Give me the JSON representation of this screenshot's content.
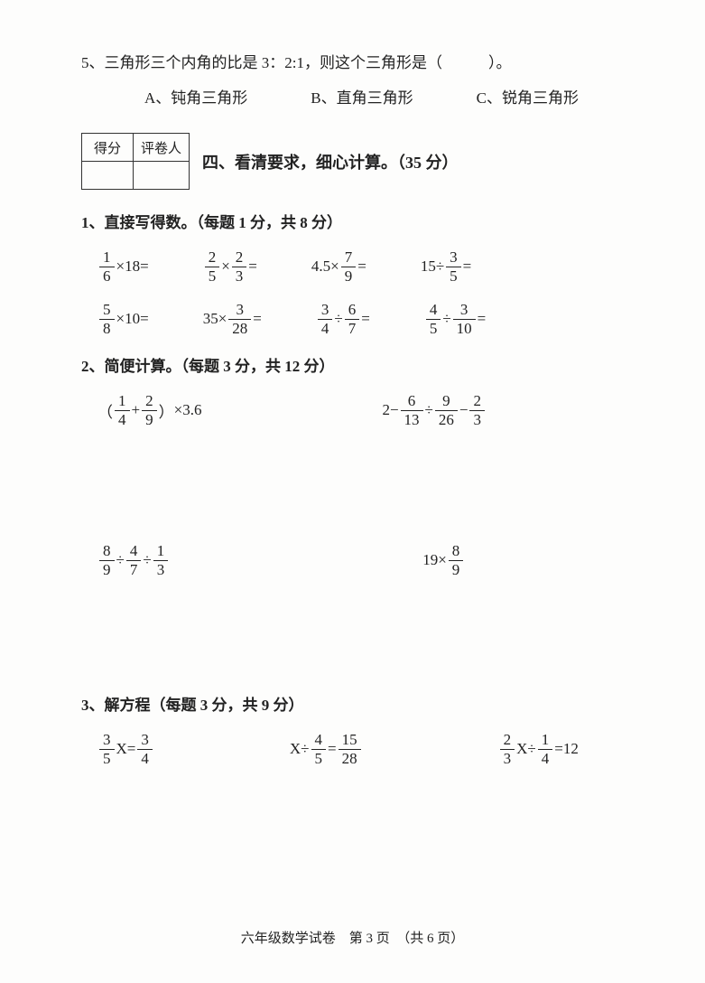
{
  "q5": {
    "stem": "5、三角形三个内角的比是 3：2:1，则这个三角形是（　　　）。",
    "optA": "A、钝角三角形",
    "optB": "B、直角三角形",
    "optC": "C、锐角三角形"
  },
  "scoreTable": {
    "c1": "得分",
    "c2": "评卷人"
  },
  "section4": "四、看清要求，细心计算。（35 分）",
  "sub1": {
    "title": "1、直接写得数。（每题 1 分，共 8 分）"
  },
  "sub2": {
    "title": "2、简便计算。（每题 3 分，共 12 分）"
  },
  "sub3": {
    "title": "3、解方程（每题 3 分，共 9 分）"
  },
  "nums": {
    "n1": "1",
    "n2": "2",
    "n3": "3",
    "n4": "4",
    "n5": "5",
    "n6": "6",
    "n7": "7",
    "n8": "8",
    "n9": "9",
    "n10": "10",
    "n13": "13",
    "n15": "15",
    "n18": "18",
    "n19": "19",
    "n26": "26",
    "n28": "28",
    "n35": "35"
  },
  "dec": {
    "d45": "4.5",
    "d36": "3.6"
  },
  "ops": {
    "times": "×",
    "div": "÷",
    "plus": "+",
    "minus": "−",
    "eq": "=",
    "lpar": "（",
    "rpar": "）",
    "var": "X",
    "twelve": "12"
  },
  "footer": "六年级数学试卷　第 3 页　（共 6 页）"
}
